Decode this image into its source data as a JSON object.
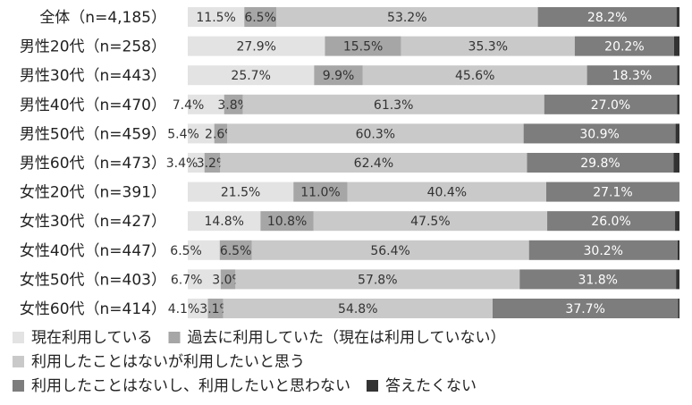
{
  "chart_data": {
    "type": "bar",
    "orientation": "horizontal",
    "stacked": true,
    "percent": true,
    "xlim": [
      0,
      100
    ],
    "categories": [
      "全体（n=4,185）",
      "男性20代（n=258）",
      "男性30代（n=443）",
      "男性40代（n=470）",
      "男性50代（n=459）",
      "男性60代（n=473）",
      "女性20代（n=391）",
      "女性30代（n=427）",
      "女性40代（n=447）",
      "女性50代（n=403）",
      "女性60代（n=414）"
    ],
    "series": [
      {
        "name": "現在利用している",
        "color": "#e3e3e3",
        "values": [
          11.5,
          27.9,
          25.7,
          7.4,
          5.4,
          3.4,
          21.5,
          14.8,
          6.5,
          6.7,
          4.1
        ],
        "labels": [
          "11.5%",
          "27.9%",
          "25.7%",
          "7.4%",
          "5.4%",
          "3.4%",
          "21.5%",
          "14.8%",
          "6.5%",
          "6.7%",
          "4.1%"
        ]
      },
      {
        "name": "過去に利用していた（現在は利用していない）",
        "color": "#a6a6a6",
        "values": [
          6.5,
          15.5,
          9.9,
          3.8,
          2.6,
          3.2,
          11.0,
          10.8,
          6.5,
          3.0,
          3.1
        ],
        "labels": [
          "6.5%",
          "15.5%",
          "9.9%",
          "3.8%",
          "2.6%",
          "3.2%",
          "11.0%",
          "10.8%",
          "6.5%",
          "3.0%",
          "3.1%"
        ]
      },
      {
        "name": "利用したことはないが利用したいと思う",
        "color": "#c9c9c9",
        "values": [
          53.2,
          35.3,
          45.6,
          61.3,
          60.3,
          62.4,
          40.4,
          47.5,
          56.4,
          57.8,
          54.8
        ],
        "labels": [
          "53.2%",
          "35.3%",
          "45.6%",
          "61.3%",
          "60.3%",
          "62.4%",
          "40.4%",
          "47.5%",
          "56.4%",
          "57.8%",
          "54.8%"
        ]
      },
      {
        "name": "利用したことはないし、利用したいと思わない",
        "color": "#7d7d7d",
        "values": [
          28.2,
          20.2,
          18.3,
          27.0,
          30.9,
          29.8,
          27.1,
          26.0,
          30.2,
          31.8,
          37.7
        ],
        "labels": [
          "28.2%",
          "20.2%",
          "18.3%",
          "27.0%",
          "30.9%",
          "29.8%",
          "27.1%",
          "26.0%",
          "30.2%",
          "31.8%",
          "37.7%"
        ]
      },
      {
        "name": "答えたくない",
        "color": "#333333",
        "values": [
          0.6,
          1.1,
          0.5,
          0.5,
          0.8,
          1.2,
          0.0,
          0.9,
          0.4,
          0.7,
          0.3
        ],
        "labels": [
          "",
          "",
          "",
          "",
          "",
          "",
          "",
          "",
          "",
          "",
          ""
        ]
      }
    ],
    "legend": {
      "placement": "bottom",
      "rows": [
        [
          0,
          1
        ],
        [
          2
        ],
        [
          3,
          4
        ]
      ]
    }
  }
}
